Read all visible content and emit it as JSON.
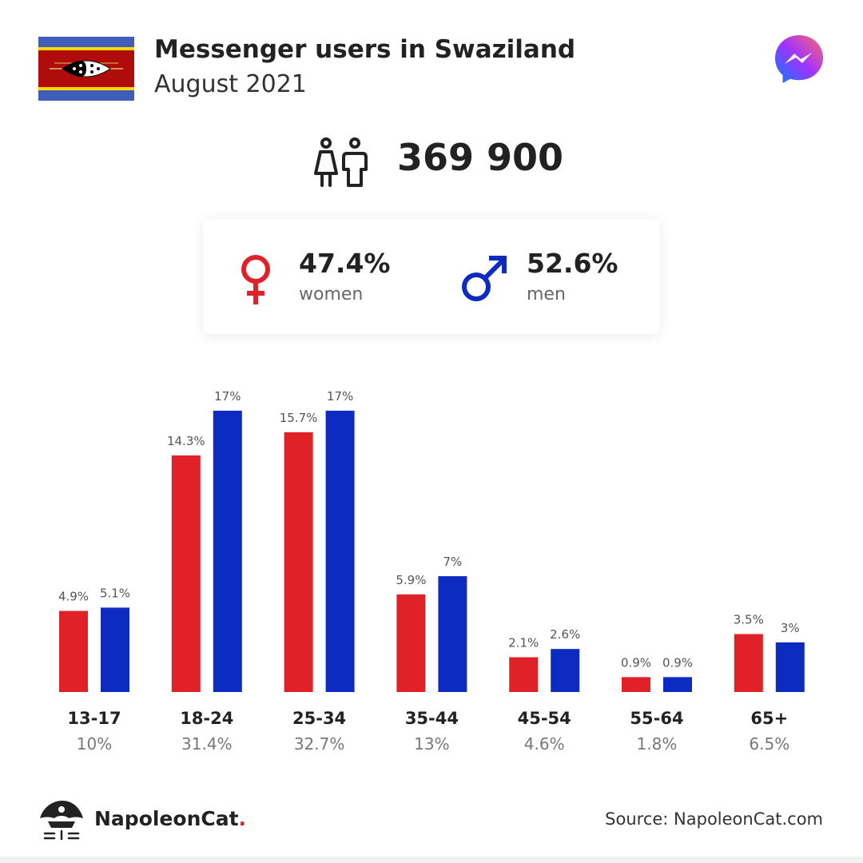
{
  "header": {
    "title": "Messenger users in Swaziland",
    "subtitle": "August 2021"
  },
  "summary": {
    "total": "369 900",
    "women": {
      "percent": "47.4%",
      "label": "women"
    },
    "men": {
      "percent": "52.6%",
      "label": "men"
    }
  },
  "colors": {
    "women": "#e02128",
    "men": "#0e2bc1",
    "label_gray": "#666666"
  },
  "icons": {
    "flag": "swaziland-flag-icon",
    "messenger": "messenger-logo-icon",
    "people": "people-icon",
    "female": "female-symbol-icon",
    "male": "male-symbol-icon",
    "brand": "napoleoncat-logo-icon"
  },
  "chart_data": {
    "type": "bar",
    "categories": [
      "13-17",
      "18-24",
      "25-34",
      "35-44",
      "45-54",
      "55-64",
      "65+"
    ],
    "category_totals": [
      "10%",
      "31.4%",
      "32.7%",
      "13%",
      "4.6%",
      "1.8%",
      "6.5%"
    ],
    "series": [
      {
        "name": "women",
        "values": [
          4.9,
          14.3,
          15.7,
          5.9,
          2.1,
          0.9,
          3.5
        ],
        "labels": [
          "4.9%",
          "14.3%",
          "15.7%",
          "5.9%",
          "2.1%",
          "0.9%",
          "3.5%"
        ]
      },
      {
        "name": "men",
        "values": [
          5.1,
          17,
          17,
          7,
          2.6,
          0.9,
          3
        ],
        "labels": [
          "5.1%",
          "17%",
          "17%",
          "7%",
          "2.6%",
          "0.9%",
          "3%"
        ]
      }
    ],
    "ylim": [
      0,
      17
    ]
  },
  "footer": {
    "brand_name": "NapoleonCat",
    "brand_dot": ".",
    "source": "Source: NapoleonCat.com"
  }
}
